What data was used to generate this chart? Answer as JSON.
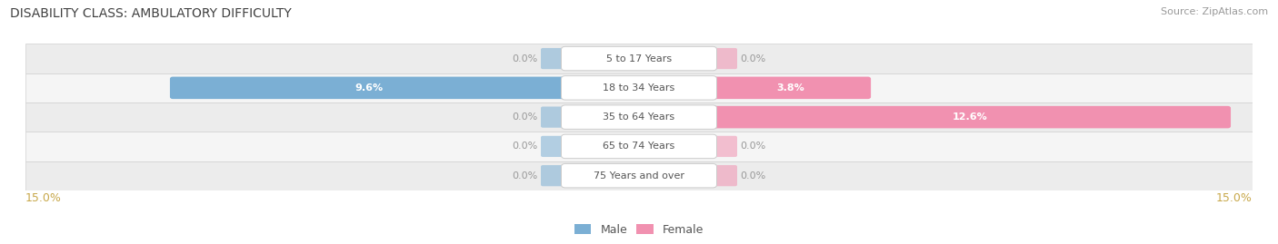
{
  "title": "DISABILITY CLASS: AMBULATORY DIFFICULTY",
  "source": "Source: ZipAtlas.com",
  "categories": [
    "5 to 17 Years",
    "18 to 34 Years",
    "35 to 64 Years",
    "65 to 74 Years",
    "75 Years and over"
  ],
  "male_values": [
    0.0,
    9.6,
    0.0,
    0.0,
    0.0
  ],
  "female_values": [
    0.0,
    3.8,
    12.6,
    0.0,
    0.0
  ],
  "max_val": 15.0,
  "male_color": "#7bafd4",
  "female_color": "#f191b0",
  "male_label": "Male",
  "female_label": "Female",
  "title_color": "#404040",
  "source_color": "#999999",
  "value_color_outside": "#999999",
  "value_color_inside": "#ffffff",
  "axis_label_color": "#c8a84b",
  "row_colors": [
    "#ececec",
    "#f5f5f5",
    "#ececec",
    "#f5f5f5",
    "#ececec"
  ],
  "center_label_color": "#ffffff",
  "center_label_edge": "#cccccc",
  "figsize": [
    14.06,
    2.69
  ],
  "dpi": 100
}
